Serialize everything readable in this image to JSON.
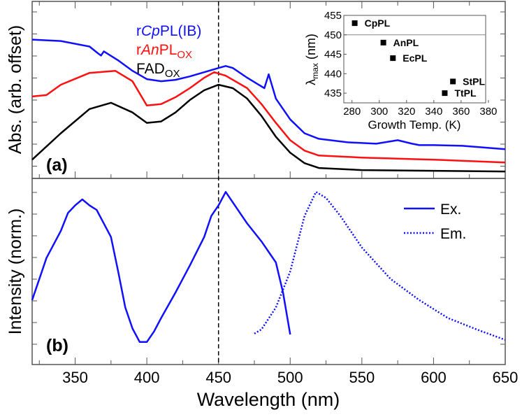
{
  "chart_data": [
    {
      "type": "line",
      "panel_label": "(a)",
      "ylabel": "Abs. (arb. offset)",
      "xlabel": "Wavelength (nm)",
      "xlim": [
        320,
        650
      ],
      "ylim": [
        0,
        10.2
      ],
      "marker_line_x": 450,
      "series": [
        {
          "name": "rCpPL(IB)",
          "name_parts": [
            "r",
            "Cp",
            "PL(IB)",
            ""
          ],
          "color": "#1010ff",
          "x": [
            320,
            340,
            360,
            366,
            368,
            370,
            380,
            390,
            400,
            410,
            420,
            430,
            440,
            450,
            455,
            460,
            470,
            478,
            482,
            485,
            490,
            500,
            510,
            520,
            540,
            560,
            575,
            585,
            590,
            600,
            620,
            650
          ],
          "y": [
            8.0,
            7.92,
            7.6,
            7.2,
            7.08,
            7.32,
            6.8,
            6.2,
            5.72,
            5.6,
            5.68,
            5.88,
            6.12,
            6.36,
            6.48,
            6.36,
            5.8,
            5.4,
            5.2,
            6.0,
            4.6,
            3.4,
            2.6,
            2.28,
            2.08,
            2.0,
            2.2,
            2.0,
            1.92,
            1.92,
            1.88,
            1.68
          ]
        },
        {
          "name": "rAnPLOX",
          "name_parts": [
            "r",
            "An",
            "PL",
            "OX"
          ],
          "color": "#ff1010",
          "x": [
            320,
            330,
            340,
            360,
            378,
            390,
            400,
            410,
            420,
            430,
            440,
            447,
            455,
            470,
            480,
            490,
            500,
            510,
            520,
            550,
            600,
            650
          ],
          "y": [
            4.72,
            4.8,
            5.4,
            6.08,
            6.2,
            5.6,
            4.2,
            4.28,
            4.68,
            5.2,
            5.8,
            6.12,
            5.92,
            5.2,
            4.28,
            3.2,
            2.2,
            1.6,
            1.32,
            1.2,
            1.08,
            0.92
          ]
        },
        {
          "name": "FADOX",
          "name_parts": [
            "",
            "",
            "FAD",
            "OX"
          ],
          "color": "#000000",
          "x": [
            320,
            340,
            360,
            375,
            390,
            400,
            410,
            420,
            430,
            440,
            450,
            460,
            470,
            480,
            490,
            500,
            510,
            520,
            550,
            600,
            650
          ],
          "y": [
            1.08,
            2.6,
            4.0,
            4.36,
            3.8,
            3.2,
            3.28,
            3.8,
            4.52,
            5.08,
            5.4,
            5.2,
            4.6,
            3.6,
            2.4,
            1.48,
            0.88,
            0.6,
            0.48,
            0.44,
            0.4
          ]
        }
      ]
    },
    {
      "type": "line",
      "panel_label": "(b)",
      "ylabel": "Intensity (norm.)",
      "xlabel": "Wavelength (nm)",
      "xlim": [
        320,
        650
      ],
      "ylim": [
        -0.15,
        1.09
      ],
      "xticks": [
        350,
        400,
        450,
        500,
        550,
        600,
        650
      ],
      "marker_line_x": 450,
      "legend_position": "top-right",
      "series": [
        {
          "name": "Ex.",
          "style": "solid",
          "color": "#1010ff",
          "x": [
            320,
            325,
            330,
            340,
            345,
            350,
            355,
            360,
            365,
            370,
            375,
            380,
            385,
            390,
            395,
            400,
            405,
            410,
            420,
            430,
            440,
            445,
            450,
            455,
            460,
            470,
            480,
            490,
            495,
            500
          ],
          "y": [
            0.28,
            0.42,
            0.56,
            0.74,
            0.86,
            0.91,
            0.95,
            0.91,
            0.88,
            0.79,
            0.7,
            0.47,
            0.23,
            0.09,
            0.0,
            0.0,
            0.07,
            0.16,
            0.33,
            0.51,
            0.7,
            0.84,
            0.91,
            1.0,
            0.93,
            0.79,
            0.67,
            0.53,
            0.33,
            0.05
          ]
        },
        {
          "name": "Em.",
          "style": "dotted",
          "color": "#1010ff",
          "x": [
            475,
            480,
            490,
            500,
            510,
            518,
            525,
            535,
            550,
            570,
            590,
            610,
            630,
            650
          ],
          "y": [
            0.056,
            0.084,
            0.23,
            0.47,
            0.84,
            1.0,
            0.96,
            0.84,
            0.63,
            0.42,
            0.28,
            0.16,
            0.084,
            0.014
          ]
        }
      ]
    },
    {
      "type": "scatter",
      "inset": true,
      "ylabel_main": "λ",
      "ylabel_sub": "max",
      "ylabel_unit": " (nm)",
      "xlabel": "Growth Temp. (K)",
      "xlim": [
        274,
        378
      ],
      "ylim": [
        432.5,
        455
      ],
      "xticks": [
        280,
        300,
        320,
        340,
        360,
        380
      ],
      "yticks": [
        435,
        440,
        445,
        450,
        455
      ],
      "reference_line_y": 450,
      "points": [
        {
          "label": "CpPL",
          "x": 282,
          "y": 453
        },
        {
          "label": "AnPL",
          "x": 303,
          "y": 448
        },
        {
          "label": "EcPL",
          "x": 310,
          "y": 444
        },
        {
          "label": "StPL",
          "x": 354,
          "y": 438
        },
        {
          "label": "TtPL",
          "x": 348,
          "y": 435
        }
      ]
    }
  ]
}
